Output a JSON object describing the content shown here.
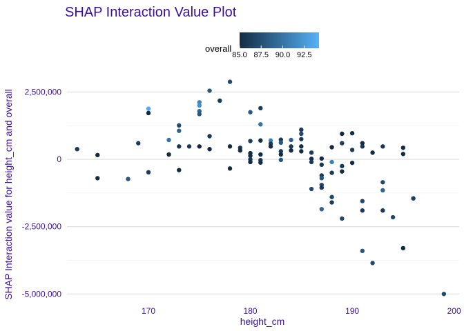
{
  "chart_data": {
    "type": "scatter",
    "title": "SHAP Interaction Value Plot",
    "xlabel": "height_cm",
    "ylabel": "SHAP Interaction value for height_cm and overall",
    "xlim": [
      162,
      200.5
    ],
    "ylim": [
      -5300000,
      3050000
    ],
    "x_ticks": [
      170,
      180,
      190,
      200
    ],
    "x_tick_labels": [
      "170",
      "180",
      "190",
      "200"
    ],
    "y_ticks": [
      -5000000,
      -2500000,
      0,
      2500000
    ],
    "y_tick_labels": [
      "-5,000,000",
      "-2,500,000",
      "0",
      "2,500,000"
    ],
    "grid": true,
    "legend": {
      "title": "overall",
      "position": "top",
      "range": [
        85.0,
        94.2
      ],
      "ticks": [
        85.0,
        87.5,
        90.0,
        92.5
      ],
      "tick_labels": [
        "85.0",
        "87.5",
        "90.0",
        "92.5"
      ]
    },
    "color_low": "#132B43",
    "color_high": "#56B1F7",
    "text_color": "#3b0fa0",
    "points": [
      {
        "x": 163,
        "y": 380000,
        "c": 86
      },
      {
        "x": 165,
        "y": 160000,
        "c": 85
      },
      {
        "x": 165,
        "y": -700000,
        "c": 85
      },
      {
        "x": 168,
        "y": -730000,
        "c": 88
      },
      {
        "x": 169,
        "y": 600000,
        "c": 86
      },
      {
        "x": 170,
        "y": 1880000,
        "c": 93.5
      },
      {
        "x": 170,
        "y": 1720000,
        "c": 85
      },
      {
        "x": 170,
        "y": -480000,
        "c": 86
      },
      {
        "x": 172,
        "y": 720000,
        "c": 90
      },
      {
        "x": 172,
        "y": 180000,
        "c": 85
      },
      {
        "x": 173,
        "y": 1260000,
        "c": 87
      },
      {
        "x": 173,
        "y": 1060000,
        "c": 89
      },
      {
        "x": 173,
        "y": 480000,
        "c": 86
      },
      {
        "x": 173,
        "y": -400000,
        "c": 85
      },
      {
        "x": 174,
        "y": 480000,
        "c": 86
      },
      {
        "x": 175,
        "y": 2120000,
        "c": 91
      },
      {
        "x": 175,
        "y": 2000000,
        "c": 92
      },
      {
        "x": 175,
        "y": 1790000,
        "c": 89
      },
      {
        "x": 175,
        "y": 1680000,
        "c": 88
      },
      {
        "x": 175,
        "y": 480000,
        "c": 85
      },
      {
        "x": 176,
        "y": 2550000,
        "c": 88
      },
      {
        "x": 176,
        "y": 860000,
        "c": 86
      },
      {
        "x": 176,
        "y": 380000,
        "c": 85
      },
      {
        "x": 177,
        "y": 2180000,
        "c": 86
      },
      {
        "x": 178,
        "y": 2880000,
        "c": 87
      },
      {
        "x": 178,
        "y": 480000,
        "c": 85
      },
      {
        "x": 178,
        "y": -340000,
        "c": 85
      },
      {
        "x": 179,
        "y": 430000,
        "c": 86
      },
      {
        "x": 179,
        "y": 330000,
        "c": 85
      },
      {
        "x": 180,
        "y": 1750000,
        "c": 88
      },
      {
        "x": 180,
        "y": 680000,
        "c": 86
      },
      {
        "x": 180,
        "y": 230000,
        "c": 85
      },
      {
        "x": 180,
        "y": 130000,
        "c": 85
      },
      {
        "x": 180,
        "y": 0,
        "c": 86
      },
      {
        "x": 180,
        "y": -100000,
        "c": 85
      },
      {
        "x": 181,
        "y": 1900000,
        "c": 86
      },
      {
        "x": 181,
        "y": 1300000,
        "c": 90
      },
      {
        "x": 181,
        "y": 700000,
        "c": 85
      },
      {
        "x": 181,
        "y": 180000,
        "c": 85
      },
      {
        "x": 181,
        "y": -30000,
        "c": 86
      },
      {
        "x": 181,
        "y": -120000,
        "c": 85
      },
      {
        "x": 182,
        "y": 700000,
        "c": 91
      },
      {
        "x": 182,
        "y": 580000,
        "c": 86
      },
      {
        "x": 182,
        "y": 480000,
        "c": 85
      },
      {
        "x": 183,
        "y": 730000,
        "c": 86
      },
      {
        "x": 183,
        "y": 620000,
        "c": 88
      },
      {
        "x": 183,
        "y": 300000,
        "c": 86
      },
      {
        "x": 183,
        "y": 180000,
        "c": 85
      },
      {
        "x": 183,
        "y": -20000,
        "c": 88
      },
      {
        "x": 184,
        "y": 720000,
        "c": 89
      },
      {
        "x": 184,
        "y": 480000,
        "c": 86
      },
      {
        "x": 184,
        "y": 330000,
        "c": 85
      },
      {
        "x": 185,
        "y": 1100000,
        "c": 86
      },
      {
        "x": 185,
        "y": 950000,
        "c": 87
      },
      {
        "x": 185,
        "y": 750000,
        "c": 86
      },
      {
        "x": 185,
        "y": 480000,
        "c": 85
      },
      {
        "x": 185,
        "y": 300000,
        "c": 85
      },
      {
        "x": 186,
        "y": 250000,
        "c": 86
      },
      {
        "x": 186,
        "y": 20000,
        "c": 85
      },
      {
        "x": 186,
        "y": -100000,
        "c": 86
      },
      {
        "x": 186,
        "y": -1100000,
        "c": 87
      },
      {
        "x": 187,
        "y": 30000,
        "c": 85
      },
      {
        "x": 187,
        "y": -200000,
        "c": 86
      },
      {
        "x": 187,
        "y": -600000,
        "c": 86
      },
      {
        "x": 187,
        "y": -700000,
        "c": 88
      },
      {
        "x": 187,
        "y": -950000,
        "c": 87
      },
      {
        "x": 187,
        "y": -1050000,
        "c": 86
      },
      {
        "x": 187,
        "y": -1850000,
        "c": 89
      },
      {
        "x": 188,
        "y": 450000,
        "c": 85
      },
      {
        "x": 188,
        "y": -100000,
        "c": 91
      },
      {
        "x": 188,
        "y": -500000,
        "c": 86
      },
      {
        "x": 188,
        "y": -1400000,
        "c": 87
      },
      {
        "x": 188,
        "y": -1600000,
        "c": 86
      },
      {
        "x": 189,
        "y": 950000,
        "c": 85
      },
      {
        "x": 189,
        "y": 600000,
        "c": 86
      },
      {
        "x": 189,
        "y": -250000,
        "c": 86
      },
      {
        "x": 189,
        "y": -450000,
        "c": 85
      },
      {
        "x": 189,
        "y": -2200000,
        "c": 87
      },
      {
        "x": 190,
        "y": 970000,
        "c": 85
      },
      {
        "x": 190,
        "y": 350000,
        "c": 86
      },
      {
        "x": 190,
        "y": -130000,
        "c": 85
      },
      {
        "x": 191,
        "y": 600000,
        "c": 85
      },
      {
        "x": 191,
        "y": 480000,
        "c": 86
      },
      {
        "x": 191,
        "y": -1550000,
        "c": 87
      },
      {
        "x": 191,
        "y": -1900000,
        "c": 86
      },
      {
        "x": 191,
        "y": -3400000,
        "c": 88
      },
      {
        "x": 192,
        "y": 250000,
        "c": 85
      },
      {
        "x": 192,
        "y": -3850000,
        "c": 87
      },
      {
        "x": 193,
        "y": 480000,
        "c": 86
      },
      {
        "x": 193,
        "y": -850000,
        "c": 87
      },
      {
        "x": 193,
        "y": -1150000,
        "c": 89
      },
      {
        "x": 193,
        "y": -1900000,
        "c": 86
      },
      {
        "x": 194,
        "y": -2150000,
        "c": 87
      },
      {
        "x": 195,
        "y": 430000,
        "c": 85
      },
      {
        "x": 195,
        "y": 200000,
        "c": 85
      },
      {
        "x": 195,
        "y": -3300000,
        "c": 85
      },
      {
        "x": 196,
        "y": -1450000,
        "c": 86
      },
      {
        "x": 199,
        "y": -5000000,
        "c": 87
      }
    ]
  }
}
